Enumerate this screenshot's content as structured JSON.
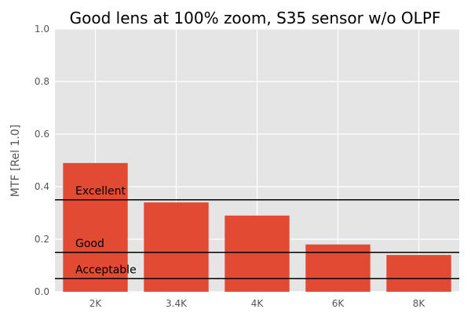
{
  "chart_data": {
    "type": "bar",
    "title": "Good lens at 100% zoom, S35 sensor w/o OLPF",
    "xlabel": "",
    "ylabel": "MTF [Rel 1.0]",
    "categories": [
      "2K",
      "3.4K",
      "4K",
      "6K",
      "8K"
    ],
    "values": [
      0.49,
      0.34,
      0.29,
      0.18,
      0.14
    ],
    "ylim": [
      0.0,
      1.0
    ],
    "yticks": [
      "0.0",
      "0.2",
      "0.4",
      "0.6",
      "0.8",
      "1.0"
    ],
    "grid": true,
    "reference_lines": [
      {
        "label": "Excellent",
        "value": 0.35
      },
      {
        "label": "Good",
        "value": 0.15
      },
      {
        "label": "Acceptable",
        "value": 0.05
      }
    ],
    "colors": {
      "bar": "#E24A33",
      "plot_background": "#E5E5E5",
      "grid": "#FFFFFF",
      "reference_line": "#000000"
    }
  }
}
